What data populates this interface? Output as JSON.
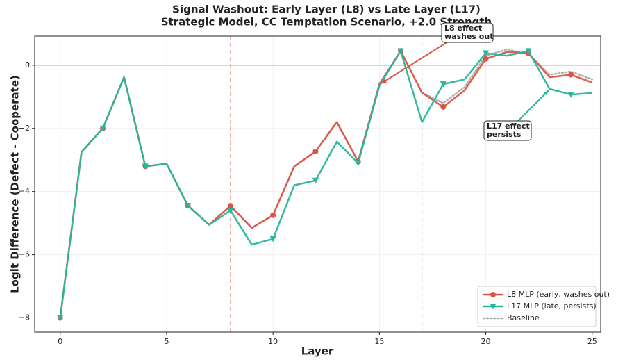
{
  "chart_data": {
    "type": "line",
    "title": [
      "Signal Washout: Early Layer (L8) vs Late Layer (L17)",
      "Strategic Model, CC Temptation Scenario, +2.0 Strength"
    ],
    "x_label": "Layer",
    "y_label": "Logit Difference (Defect - Cooperate)",
    "x": [
      0,
      1,
      2,
      3,
      4,
      5,
      6,
      7,
      8,
      9,
      10,
      11,
      12,
      13,
      14,
      15,
      16,
      17,
      18,
      19,
      20,
      21,
      22,
      23,
      24,
      25
    ],
    "series": [
      {
        "name": "L8 MLP (early, washes out)",
        "color": "#dd5444",
        "marker": "circle",
        "style": "solid",
        "values": [
          -8.0,
          -2.75,
          -2.0,
          -0.38,
          -3.2,
          -3.12,
          -4.45,
          -5.05,
          -4.45,
          -5.15,
          -4.75,
          -3.2,
          -2.73,
          -1.8,
          -3.05,
          -0.6,
          0.45,
          -0.87,
          -1.32,
          -0.8,
          0.2,
          0.42,
          0.38,
          -0.38,
          -0.3,
          -0.55
        ]
      },
      {
        "name": "L17 MLP (late, persists)",
        "color": "#2ab59a",
        "marker": "triangle-down",
        "style": "solid",
        "values": [
          -8.0,
          -2.75,
          -2.0,
          -0.38,
          -3.2,
          -3.12,
          -4.45,
          -5.05,
          -4.6,
          -5.68,
          -5.5,
          -3.8,
          -3.65,
          -2.42,
          -3.1,
          -0.65,
          0.45,
          -1.8,
          -0.6,
          -0.45,
          0.38,
          0.3,
          0.45,
          -0.75,
          -0.93,
          -0.88
        ]
      },
      {
        "name": "Baseline",
        "color": "#a8a8a8",
        "marker": "none",
        "style": "dotted",
        "values": [
          -8.0,
          -2.75,
          -2.0,
          -0.38,
          -3.2,
          -3.12,
          -4.45,
          -5.05,
          -4.45,
          -5.15,
          -4.75,
          -3.2,
          -2.73,
          -1.8,
          -3.05,
          -0.6,
          0.45,
          -0.87,
          -1.2,
          -0.7,
          0.3,
          0.5,
          0.35,
          -0.3,
          -0.2,
          -0.45
        ]
      }
    ],
    "markevery": 2,
    "xlim": [
      -1.2,
      25.4
    ],
    "ylim": [
      -8.45,
      0.92
    ],
    "xticks": [
      0,
      5,
      10,
      15,
      20,
      25
    ],
    "yticks": [
      {
        "value": -8,
        "label": "−8"
      },
      {
        "value": -6,
        "label": "−6"
      },
      {
        "value": -4,
        "label": "−4"
      },
      {
        "value": -2,
        "label": "−2"
      },
      0
    ],
    "grid": true,
    "legend": "lower right",
    "hline": 0,
    "vlines": [
      {
        "x": 8,
        "color": "#dd5444"
      },
      {
        "x": 17,
        "color": "#2ab59a"
      }
    ],
    "annotations": [
      {
        "text": [
          "L8 effect",
          "washes out"
        ],
        "color": "#dd5444"
      },
      {
        "text": [
          "L17 effect",
          "persists"
        ],
        "color": "#2ab59a"
      }
    ]
  }
}
